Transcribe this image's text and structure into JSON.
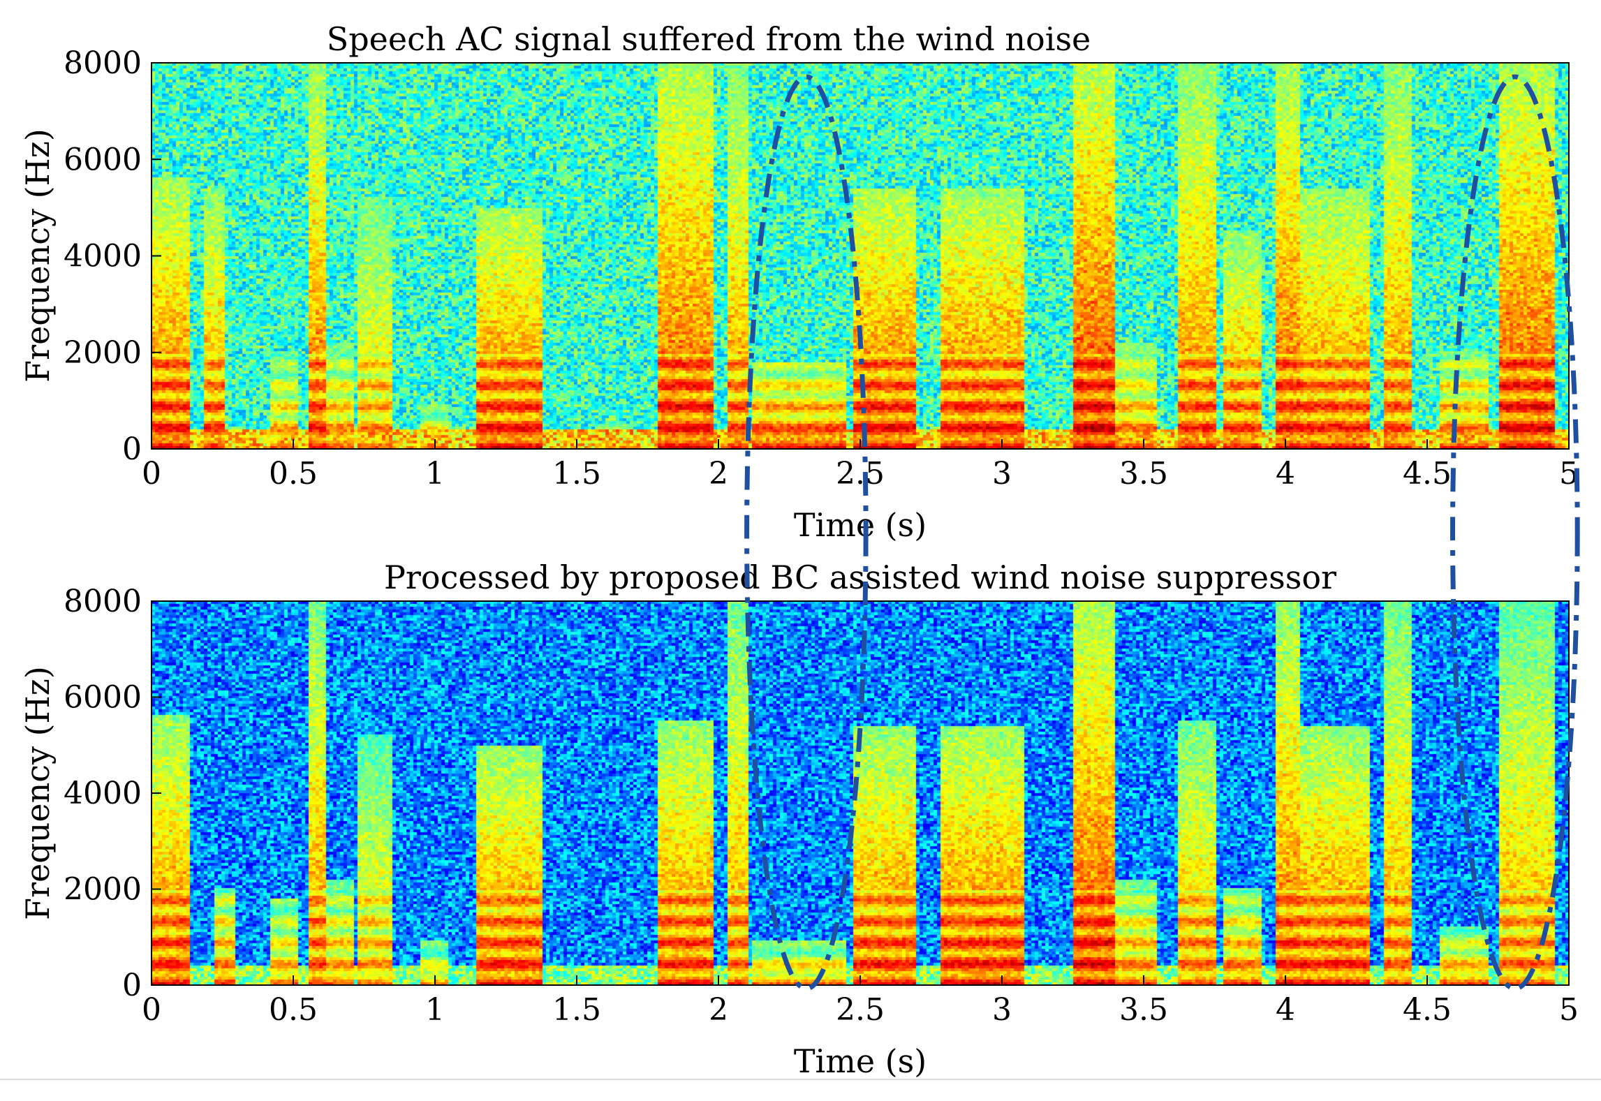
{
  "chart_data": [
    {
      "type": "heatmap",
      "title": "Speech AC signal suffered from the wind noise",
      "xlabel": "Time (s)",
      "ylabel": "Frequency (Hz)",
      "xlim": [
        0,
        5
      ],
      "ylim": [
        0,
        8000
      ],
      "x_ticks": [
        "0",
        "0.5",
        "1",
        "1.5",
        "2",
        "2.5",
        "3",
        "3.5",
        "4",
        "4.5",
        "5"
      ],
      "y_ticks": [
        "0",
        "2000",
        "4000",
        "6000",
        "8000"
      ],
      "colormap": "jet",
      "background_level": 0.42,
      "speech_segments": [
        {
          "t0": 0.0,
          "t1": 0.13,
          "fmax": 5600,
          "level": 0.92
        },
        {
          "t0": 0.19,
          "t1": 0.26,
          "fmax": 5400,
          "level": 0.88
        },
        {
          "t0": 0.42,
          "t1": 0.52,
          "fmax": 2000,
          "level": 0.8
        },
        {
          "t0": 0.55,
          "t1": 0.62,
          "fmax": 8000,
          "level": 0.9
        },
        {
          "t0": 0.62,
          "t1": 0.72,
          "fmax": 2200,
          "level": 0.82
        },
        {
          "t0": 0.73,
          "t1": 0.85,
          "fmax": 5200,
          "level": 0.8
        },
        {
          "t0": 0.95,
          "t1": 1.05,
          "fmax": 900,
          "level": 0.78
        },
        {
          "t0": 1.14,
          "t1": 1.38,
          "fmax": 5000,
          "level": 0.92
        },
        {
          "t0": 1.57,
          "t1": 1.7,
          "fmax": 500,
          "level": 0.72
        },
        {
          "t0": 1.78,
          "t1": 1.98,
          "fmax": 8000,
          "level": 0.93
        },
        {
          "t0": 2.03,
          "t1": 2.1,
          "fmax": 8000,
          "level": 0.86
        },
        {
          "t0": 2.12,
          "t1": 2.45,
          "fmax": 1800,
          "level": 0.9
        },
        {
          "t0": 2.48,
          "t1": 2.7,
          "fmax": 5400,
          "level": 0.93
        },
        {
          "t0": 2.78,
          "t1": 3.08,
          "fmax": 5400,
          "level": 0.92
        },
        {
          "t0": 3.25,
          "t1": 3.4,
          "fmax": 8000,
          "level": 0.96
        },
        {
          "t0": 3.4,
          "t1": 3.55,
          "fmax": 2200,
          "level": 0.84
        },
        {
          "t0": 3.62,
          "t1": 3.75,
          "fmax": 8000,
          "level": 0.88
        },
        {
          "t0": 3.78,
          "t1": 3.92,
          "fmax": 4500,
          "level": 0.88
        },
        {
          "t0": 3.96,
          "t1": 4.05,
          "fmax": 8000,
          "level": 0.92
        },
        {
          "t0": 4.05,
          "t1": 4.3,
          "fmax": 5400,
          "level": 0.9
        },
        {
          "t0": 4.35,
          "t1": 4.45,
          "fmax": 8000,
          "level": 0.86
        },
        {
          "t0": 4.55,
          "t1": 4.72,
          "fmax": 2000,
          "level": 0.86
        },
        {
          "t0": 4.75,
          "t1": 4.95,
          "fmax": 8000,
          "level": 0.94
        }
      ]
    },
    {
      "type": "heatmap",
      "title": "Processed by proposed BC assisted wind noise suppressor",
      "xlabel": "Time (s)",
      "ylabel": "Frequency (Hz)",
      "xlim": [
        0,
        5
      ],
      "ylim": [
        0,
        8000
      ],
      "x_ticks": [
        "0",
        "0.5",
        "1",
        "1.5",
        "2",
        "2.5",
        "3",
        "3.5",
        "4",
        "4.5",
        "5"
      ],
      "y_ticks": [
        "0",
        "2000",
        "4000",
        "6000",
        "8000"
      ],
      "colormap": "jet",
      "background_level": 0.26,
      "speech_segments": [
        {
          "t0": 0.0,
          "t1": 0.13,
          "fmax": 5600,
          "level": 0.9
        },
        {
          "t0": 0.22,
          "t1": 0.3,
          "fmax": 2000,
          "level": 0.86
        },
        {
          "t0": 0.42,
          "t1": 0.52,
          "fmax": 1800,
          "level": 0.8
        },
        {
          "t0": 0.55,
          "t1": 0.62,
          "fmax": 8000,
          "level": 0.86
        },
        {
          "t0": 0.62,
          "t1": 0.72,
          "fmax": 2200,
          "level": 0.82
        },
        {
          "t0": 0.73,
          "t1": 0.85,
          "fmax": 5200,
          "level": 0.78
        },
        {
          "t0": 0.95,
          "t1": 1.05,
          "fmax": 900,
          "level": 0.76
        },
        {
          "t0": 1.14,
          "t1": 1.38,
          "fmax": 5000,
          "level": 0.9
        },
        {
          "t0": 1.78,
          "t1": 1.98,
          "fmax": 5500,
          "level": 0.9
        },
        {
          "t0": 2.03,
          "t1": 2.1,
          "fmax": 8000,
          "level": 0.84
        },
        {
          "t0": 2.12,
          "t1": 2.45,
          "fmax": 900,
          "level": 0.8
        },
        {
          "t0": 2.48,
          "t1": 2.7,
          "fmax": 5400,
          "level": 0.9
        },
        {
          "t0": 2.78,
          "t1": 3.08,
          "fmax": 5400,
          "level": 0.92
        },
        {
          "t0": 3.25,
          "t1": 3.4,
          "fmax": 8000,
          "level": 0.94
        },
        {
          "t0": 3.4,
          "t1": 3.55,
          "fmax": 2200,
          "level": 0.84
        },
        {
          "t0": 3.62,
          "t1": 3.75,
          "fmax": 5500,
          "level": 0.84
        },
        {
          "t0": 3.78,
          "t1": 3.92,
          "fmax": 2000,
          "level": 0.86
        },
        {
          "t0": 3.96,
          "t1": 4.05,
          "fmax": 8000,
          "level": 0.9
        },
        {
          "t0": 4.05,
          "t1": 4.3,
          "fmax": 5400,
          "level": 0.9
        },
        {
          "t0": 4.35,
          "t1": 4.45,
          "fmax": 8000,
          "level": 0.84
        },
        {
          "t0": 4.55,
          "t1": 4.72,
          "fmax": 1200,
          "level": 0.84
        },
        {
          "t0": 4.75,
          "t1": 4.95,
          "fmax": 8000,
          "level": 0.82
        }
      ]
    }
  ],
  "annotations": [
    {
      "kind": "dashed-ellipse",
      "t_center": 2.31,
      "t_halfwidth": 0.21,
      "color": "#1f4fa0"
    },
    {
      "kind": "dashed-ellipse",
      "t_center": 4.81,
      "t_halfwidth": 0.22,
      "color": "#1f4fa0"
    }
  ]
}
